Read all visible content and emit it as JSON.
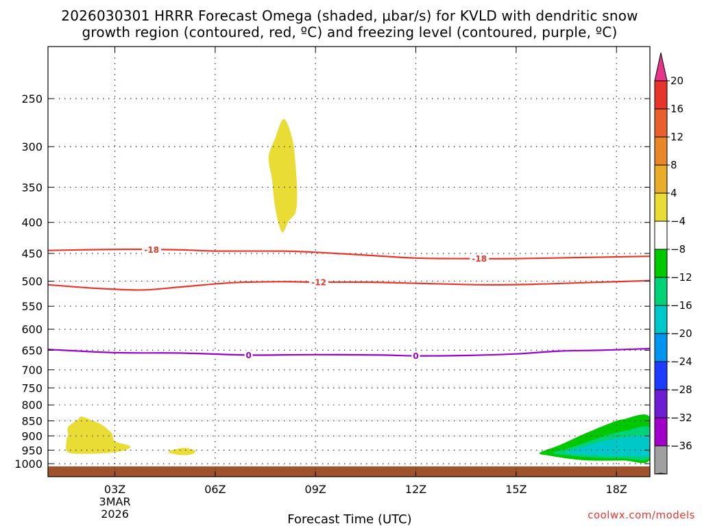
{
  "chart_data": {
    "type": "time-height-contour",
    "title_line1": "2026030301 HRRR Forecast Omega (shaded, μbar/s) for KVLD with dendritic snow",
    "title_line2": "growth region (contoured, red, ºC) and freezing level (contoured, purple, ºC)",
    "xlabel": "Forecast Time (UTC)",
    "x_range_hours": [
      1,
      19
    ],
    "x_ticks": [
      {
        "hour": 3,
        "label": "03Z",
        "sub1": "3MAR",
        "sub2": "2026"
      },
      {
        "hour": 6,
        "label": "06Z"
      },
      {
        "hour": 9,
        "label": "09Z"
      },
      {
        "hour": 12,
        "label": "12Z"
      },
      {
        "hour": 15,
        "label": "15Z"
      },
      {
        "hour": 18,
        "label": "18Z"
      }
    ],
    "pressure_levels": [
      250,
      300,
      350,
      400,
      450,
      500,
      550,
      600,
      650,
      700,
      750,
      800,
      850,
      900,
      950,
      1000
    ],
    "colorbar": {
      "labels": [
        "20",
        "16",
        "12",
        "8",
        "4",
        "−4",
        "−8",
        "−12",
        "−16",
        "−20",
        "−24",
        "−28",
        "−32",
        "−36"
      ],
      "colors": [
        "#e8358c",
        "#e8352b",
        "#e8602b",
        "#e8862b",
        "#e8ae2b",
        "#e8dc35",
        "#ffffff",
        "#00c800",
        "#00d278",
        "#00c8c8",
        "#0096f0",
        "#1e3cff",
        "#6e1ed2",
        "#a000c8",
        "#a0a0a0",
        "#000000"
      ]
    },
    "contours": [
      {
        "name": "dgz-minus18",
        "label": "-18",
        "color": "#e8352b",
        "points": [
          [
            1.0,
            445
          ],
          [
            2.0,
            444
          ],
          [
            3.5,
            443
          ],
          [
            5,
            444
          ],
          [
            6,
            446
          ],
          [
            8,
            446
          ],
          [
            9,
            448
          ],
          [
            10.5,
            453
          ],
          [
            12,
            458
          ],
          [
            13.5,
            459
          ],
          [
            15,
            459
          ],
          [
            17,
            457
          ],
          [
            19,
            455
          ]
        ],
        "label_hours": [
          4.1,
          13.9
        ]
      },
      {
        "name": "dgz-minus12",
        "label": "-12",
        "color": "#e8352b",
        "points": [
          [
            1.0,
            507
          ],
          [
            2.5,
            514
          ],
          [
            3.8,
            517
          ],
          [
            5,
            511
          ],
          [
            6.5,
            503
          ],
          [
            8,
            501
          ],
          [
            9,
            502
          ],
          [
            10.5,
            502
          ],
          [
            12,
            504
          ],
          [
            14,
            507
          ],
          [
            15.5,
            506
          ],
          [
            17,
            503
          ],
          [
            19,
            499
          ]
        ],
        "label_hours": [
          9.1
        ]
      },
      {
        "name": "freezing-level-0",
        "label": "0",
        "color": "#9900cc",
        "points": [
          [
            1.0,
            648
          ],
          [
            3,
            656
          ],
          [
            5,
            657
          ],
          [
            7,
            662
          ],
          [
            9,
            661
          ],
          [
            11,
            662
          ],
          [
            12,
            664
          ],
          [
            13.5,
            663
          ],
          [
            15,
            659
          ],
          [
            16.3,
            652
          ],
          [
            17.5,
            650
          ],
          [
            19,
            646
          ]
        ],
        "label_hours": [
          7.0,
          12.0
        ]
      }
    ],
    "omega_regions": [
      {
        "name": "omega-upper-positive",
        "value_band": "4 to 8",
        "color": "#e8dc35",
        "points": [
          [
            7.6,
            312
          ],
          [
            7.8,
            290
          ],
          [
            8.05,
            270
          ],
          [
            8.3,
            290
          ],
          [
            8.4,
            320
          ],
          [
            8.45,
            360
          ],
          [
            8.4,
            385
          ],
          [
            8.2,
            398
          ],
          [
            8.0,
            415
          ],
          [
            7.8,
            380
          ],
          [
            7.7,
            340
          ]
        ]
      },
      {
        "name": "omega-lowlevel-positive-a",
        "value_band": "4 to 8",
        "color": "#e8dc35",
        "points": [
          [
            1.6,
            870
          ],
          [
            1.9,
            845
          ],
          [
            2.0,
            836
          ],
          [
            2.3,
            848
          ],
          [
            2.6,
            862
          ],
          [
            2.9,
            890
          ],
          [
            3.0,
            918
          ],
          [
            3.45,
            935
          ],
          [
            3.3,
            950
          ],
          [
            2.8,
            960
          ],
          [
            2.2,
            963
          ],
          [
            1.6,
            958
          ],
          [
            1.55,
            920
          ],
          [
            1.6,
            895
          ]
        ]
      },
      {
        "name": "omega-lowlevel-positive-b",
        "value_band": "4 to 8",
        "color": "#e8dc35",
        "points": [
          [
            4.6,
            955
          ],
          [
            4.8,
            947
          ],
          [
            5.1,
            942
          ],
          [
            5.4,
            952
          ],
          [
            5.3,
            965
          ],
          [
            5.0,
            968
          ],
          [
            4.7,
            962
          ]
        ]
      },
      {
        "name": "omega-negative-green",
        "value_band": "-4 to -8",
        "color": "#00c800",
        "points": [
          [
            15.7,
            960
          ],
          [
            16.3,
            932
          ],
          [
            17,
            895
          ],
          [
            17.8,
            858
          ],
          [
            18.2,
            845
          ],
          [
            19,
            838
          ],
          [
            19,
            985
          ],
          [
            18.2,
            988
          ],
          [
            17.2,
            988
          ],
          [
            16.5,
            980
          ],
          [
            16.0,
            970
          ]
        ]
      },
      {
        "name": "omega-negative-teal",
        "value_band": "-8 to -12",
        "color": "#00d278",
        "points": [
          [
            16.1,
            960
          ],
          [
            16.6,
            942
          ],
          [
            17.2,
            918
          ],
          [
            17.8,
            895
          ],
          [
            18.3,
            882
          ],
          [
            19,
            873
          ],
          [
            19,
            978
          ],
          [
            18.2,
            980
          ],
          [
            17.4,
            978
          ],
          [
            16.6,
            970
          ]
        ]
      },
      {
        "name": "omega-negative-cyan",
        "value_band": "-12 to -16",
        "color": "#00c8c8",
        "points": [
          [
            16.5,
            958
          ],
          [
            17.0,
            938
          ],
          [
            17.6,
            918
          ],
          [
            18.2,
            905
          ],
          [
            18.8,
            900
          ],
          [
            19,
            900
          ],
          [
            19,
            968
          ],
          [
            18.4,
            972
          ],
          [
            17.6,
            970
          ],
          [
            16.9,
            965
          ]
        ]
      }
    ],
    "ground_color": "#a0522d"
  },
  "credit": "coolwx.com/models"
}
